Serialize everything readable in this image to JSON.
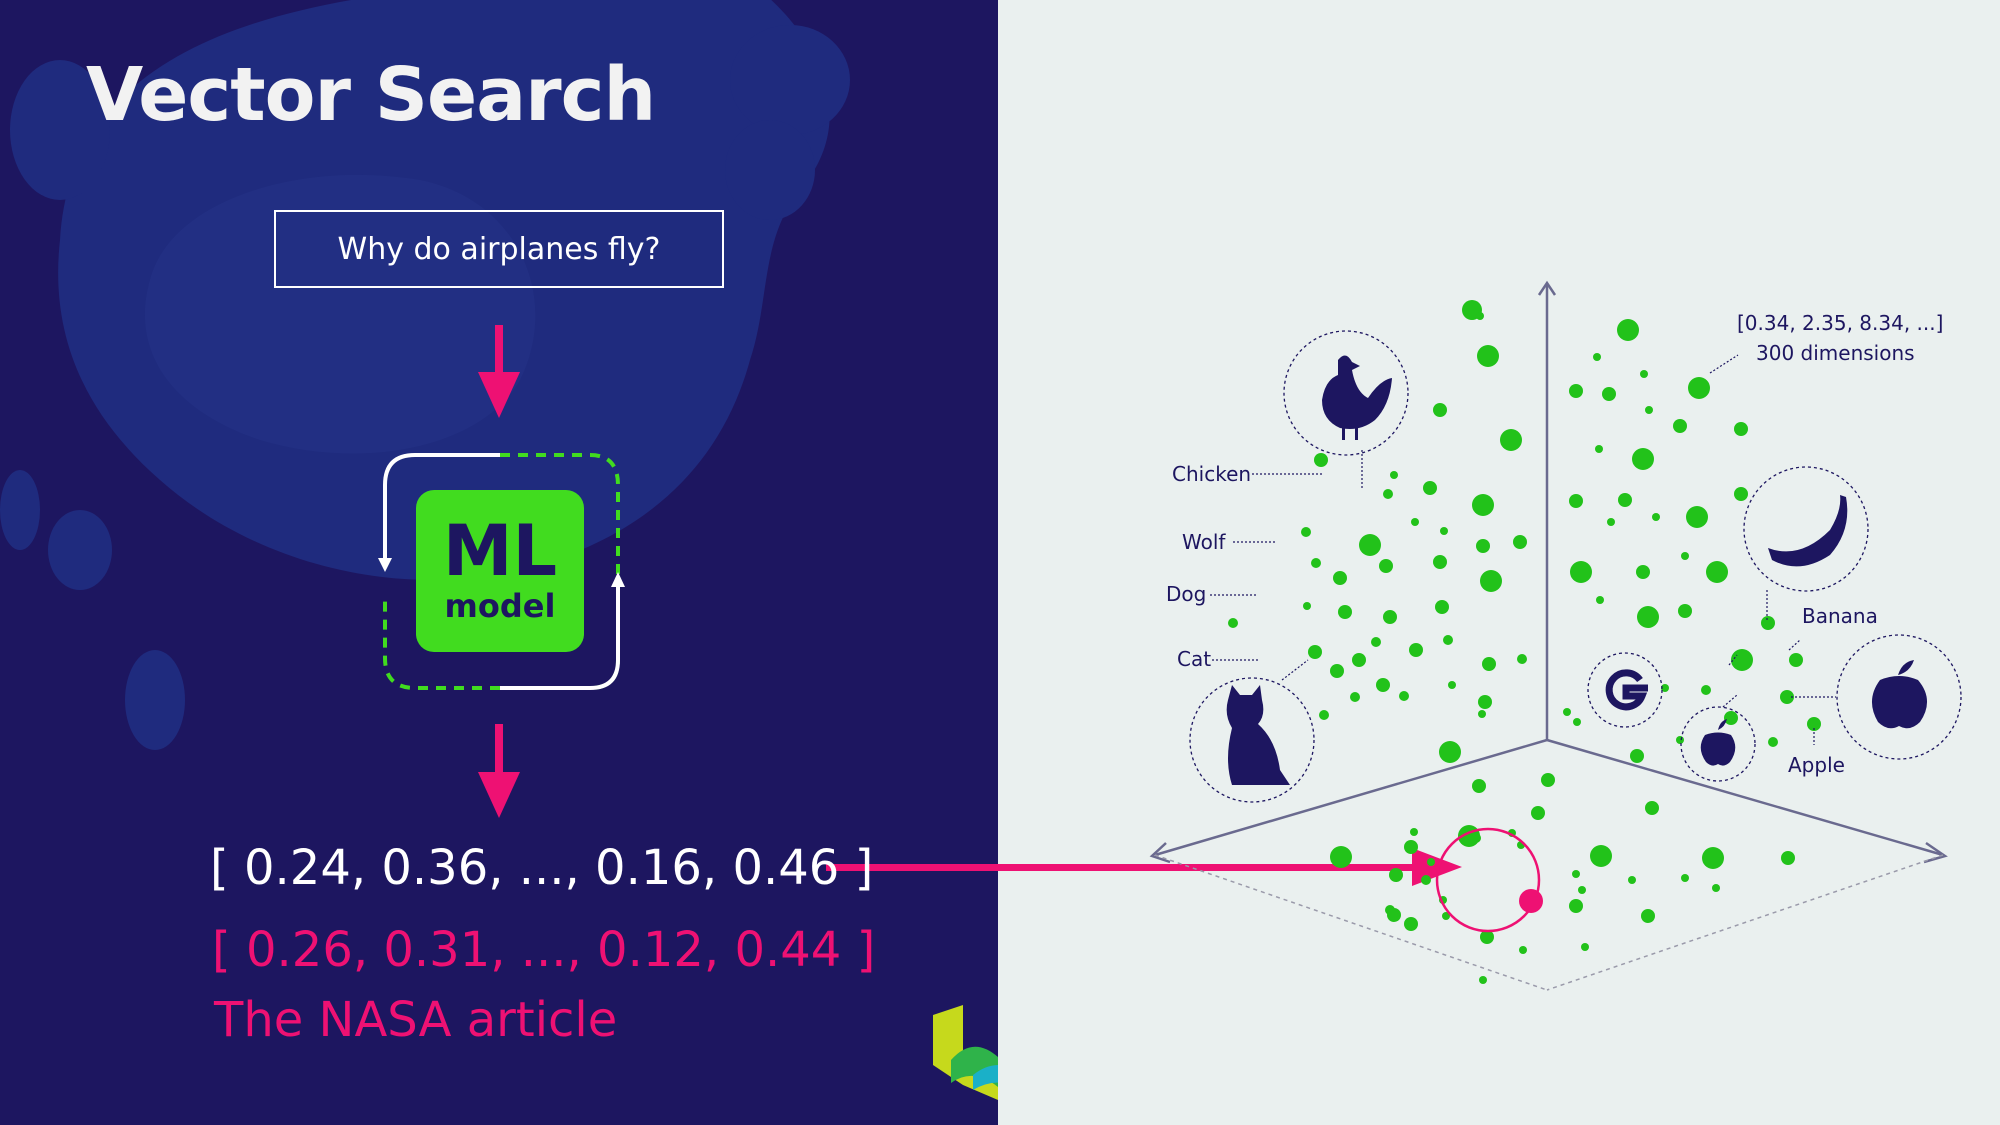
{
  "slide": {
    "title": "Vector Search",
    "query": "Why do airplanes fly?",
    "model": {
      "title": "ML",
      "subtitle": "model"
    },
    "query_vector": "[ 0.24, 0.36, ..., 0.16, 0.46 ]",
    "match_vector": "[ 0.26, 0.31, ..., 0.12, 0.44 ]",
    "match_label": "The NASA article"
  },
  "space": {
    "vector_note": "[0.34, 2.35, 8.34, ...]",
    "dimensions_note": "300 dimensions",
    "labels": {
      "chicken": "Chicken",
      "wolf": "Wolf",
      "dog": "Dog",
      "cat": "Cat",
      "banana": "Banana",
      "apple": "Apple"
    }
  },
  "colors": {
    "navy": "#1d1660",
    "green": "#22c21a",
    "ml_green": "#41dc1f",
    "pink": "#ee1173",
    "light_bg": "#eaf0ef"
  }
}
